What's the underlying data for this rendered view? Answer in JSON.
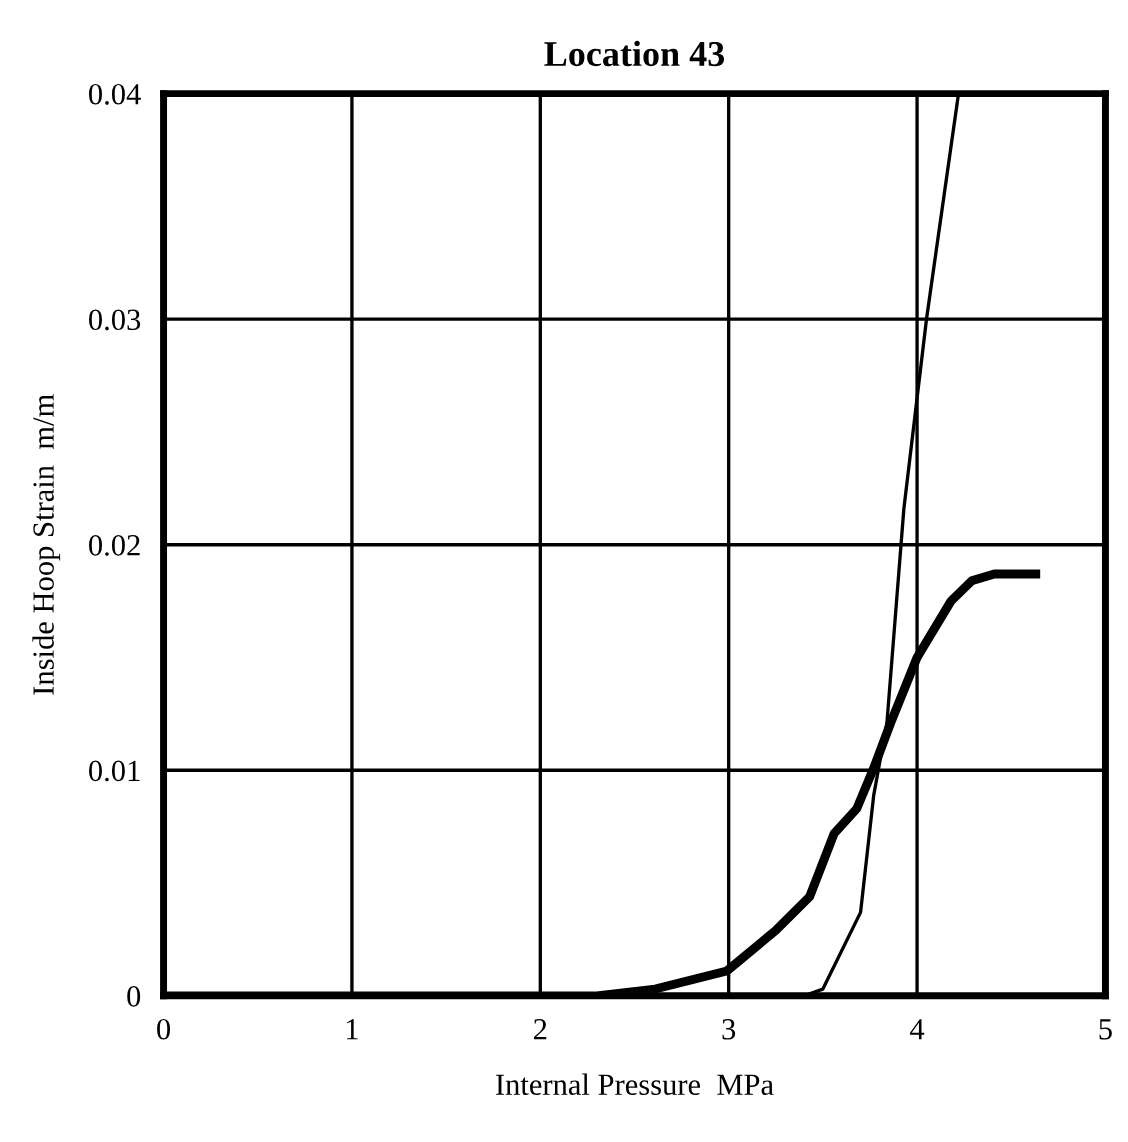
{
  "chart_data": {
    "type": "line",
    "title": "Location 43",
    "xlabel": "Internal Pressure  MPa",
    "ylabel": "Inside Hoop Strain  m/m",
    "series": [
      {
        "color": "#000000",
        "x": [
          0,
          2.3,
          2.61,
          2.99,
          3.25,
          3.43,
          3.56,
          3.68,
          3.77,
          3.86,
          4.0,
          4.18,
          4.29,
          4.41,
          4.63
        ],
        "values": [
          0,
          0,
          0.0003,
          0.0011,
          0.0029,
          0.0044,
          0.0072,
          0.0083,
          0.0101,
          0.0121,
          0.015,
          0.0175,
          0.0184,
          0.0187,
          0.0187
        ]
      },
      {
        "color": "#000000",
        "x": [
          0,
          3.4,
          3.5,
          3.7,
          3.77,
          3.84,
          3.93,
          4.05,
          4.22
        ],
        "values": [
          0,
          0,
          0.0003,
          0.0037,
          0.0089,
          0.0121,
          0.0216,
          0.03,
          0.04
        ]
      }
    ],
    "xlim": [
      0,
      5
    ],
    "xticks": [
      0,
      1,
      2,
      3,
      4,
      5
    ],
    "ylim": [
      0,
      0.04
    ],
    "yticks": [
      0,
      0.01,
      0.02,
      0.03,
      0.04
    ],
    "grid": true,
    "legend": false,
    "marker": "none",
    "line_style": "solid"
  }
}
